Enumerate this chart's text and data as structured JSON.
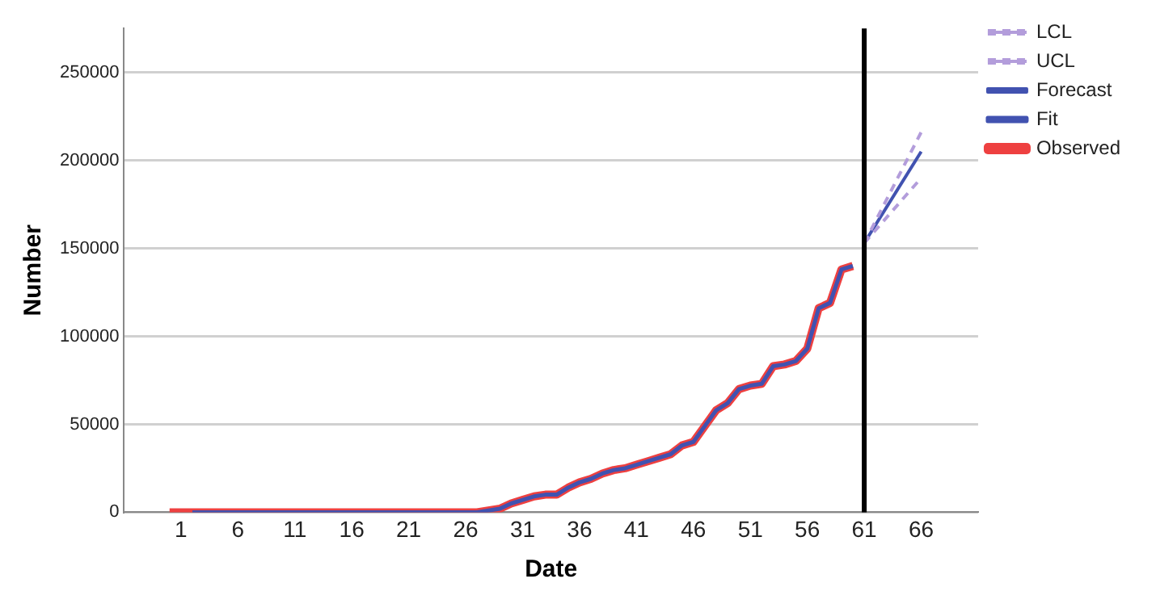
{
  "chart_data": {
    "type": "line",
    "xlabel": "Date",
    "ylabel": "Number",
    "xlim": [
      -4,
      71
    ],
    "xticks": [
      1,
      6,
      11,
      16,
      21,
      26,
      31,
      36,
      41,
      46,
      51,
      56,
      61,
      66
    ],
    "ylim": [
      0,
      275000
    ],
    "yticks": [
      0,
      50000,
      100000,
      150000,
      200000,
      250000
    ],
    "grid": "y",
    "legend": "top right",
    "marker": "none",
    "ref_lines": [
      {
        "axis": "x",
        "value": 61,
        "color": "#000000"
      }
    ],
    "series": [
      {
        "name": "Observed",
        "color": "#ee4040",
        "line_style": "solid",
        "x": [
          0,
          1,
          2,
          3,
          4,
          5,
          6,
          7,
          8,
          9,
          10,
          11,
          12,
          13,
          14,
          15,
          16,
          17,
          18,
          19,
          20,
          21,
          22,
          23,
          24,
          25,
          26,
          27,
          28,
          29,
          30,
          31,
          32,
          33,
          34,
          35,
          36,
          37,
          38,
          39,
          40,
          41,
          42,
          43,
          44,
          45,
          46,
          47,
          48,
          49,
          50,
          51,
          52,
          53,
          54,
          55,
          56,
          57,
          58,
          59,
          60
        ],
        "values": [
          0,
          0,
          0,
          0,
          0,
          0,
          0,
          0,
          0,
          0,
          0,
          0,
          0,
          0,
          0,
          0,
          0,
          0,
          0,
          0,
          0,
          0,
          0,
          0,
          0,
          0,
          0,
          0,
          1000,
          2000,
          5000,
          7000,
          9000,
          10000,
          10000,
          14000,
          17000,
          19000,
          22000,
          24000,
          25000,
          27000,
          29000,
          31000,
          33000,
          38000,
          40000,
          49000,
          58000,
          62000,
          70000,
          72000,
          73000,
          83000,
          84000,
          86000,
          93000,
          116000,
          119000,
          138000,
          140000
        ]
      },
      {
        "name": "Fit",
        "color": "#4152b0",
        "line_style": "solid",
        "x": [
          2,
          3,
          4,
          5,
          6,
          7,
          8,
          9,
          10,
          11,
          12,
          13,
          14,
          15,
          16,
          17,
          18,
          19,
          20,
          21,
          22,
          23,
          24,
          25,
          26,
          27,
          28,
          29,
          30,
          31,
          32,
          33,
          34,
          35,
          36,
          37,
          38,
          39,
          40,
          41,
          42,
          43,
          44,
          45,
          46,
          47,
          48,
          49,
          50,
          51,
          52,
          53,
          54,
          55,
          56,
          57,
          58,
          59,
          60
        ],
        "values": [
          0,
          0,
          0,
          0,
          0,
          0,
          0,
          0,
          0,
          0,
          0,
          0,
          0,
          0,
          0,
          0,
          0,
          0,
          0,
          0,
          0,
          0,
          0,
          0,
          0,
          0,
          1000,
          2000,
          5000,
          7000,
          9000,
          10000,
          10000,
          14000,
          17000,
          19000,
          22000,
          24000,
          25000,
          27000,
          29000,
          31000,
          33000,
          38000,
          40000,
          49000,
          58000,
          62000,
          70000,
          72000,
          73000,
          83000,
          84000,
          86000,
          93000,
          116000,
          119000,
          138000,
          140000
        ]
      },
      {
        "name": "Forecast",
        "color": "#4152b0",
        "line_style": "solid",
        "x": [
          61,
          66
        ],
        "values": [
          153000,
          205000
        ]
      },
      {
        "name": "UCL",
        "color": "#b39ddb",
        "line_style": "dashed",
        "x": [
          61,
          66
        ],
        "values": [
          153000,
          216000
        ]
      },
      {
        "name": "LCL",
        "color": "#b39ddb",
        "line_style": "dashed",
        "x": [
          61,
          66
        ],
        "values": [
          153000,
          190000
        ]
      }
    ]
  }
}
